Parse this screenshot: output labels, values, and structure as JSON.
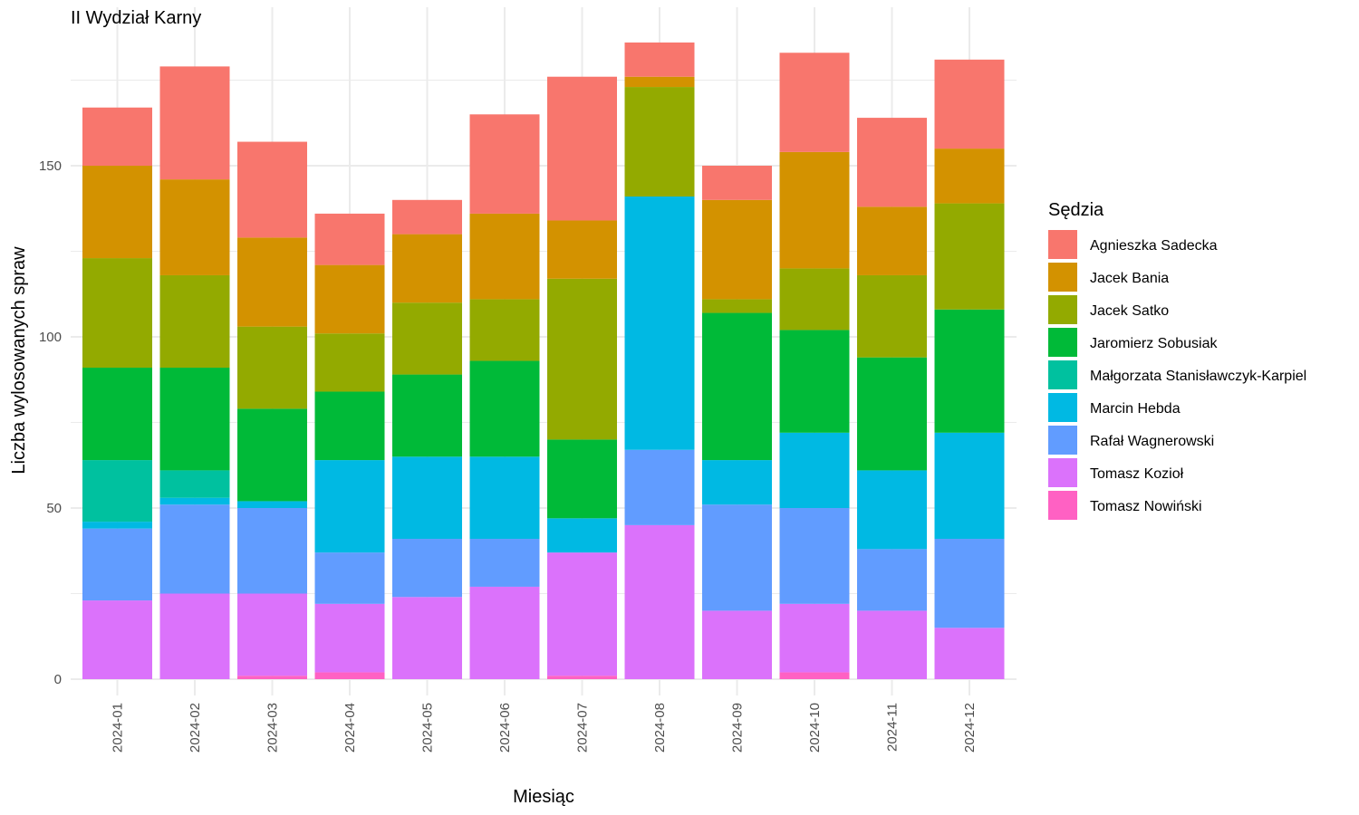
{
  "chart_data": {
    "type": "bar",
    "stacked": true,
    "title": "II Wydział Karny",
    "xlabel": "Miesiąc",
    "ylabel": "Liczba wylosowanych spraw",
    "ylim": [
      0,
      190
    ],
    "yticks": [
      0,
      50,
      100,
      150
    ],
    "grid": true,
    "legend_title": "Sędzia",
    "legend_position": "right",
    "categories": [
      "2024-01",
      "2024-02",
      "2024-03",
      "2024-04",
      "2024-05",
      "2024-06",
      "2024-07",
      "2024-08",
      "2024-09",
      "2024-10",
      "2024-11",
      "2024-12"
    ],
    "series": [
      {
        "name": "Agnieszka Sadecka",
        "color": "#F8766D",
        "values": [
          17,
          33,
          28,
          15,
          10,
          29,
          42,
          10,
          10,
          29,
          26,
          26
        ]
      },
      {
        "name": "Jacek Bania",
        "color": "#D39200",
        "values": [
          27,
          28,
          26,
          20,
          20,
          25,
          17,
          3,
          29,
          34,
          20,
          16
        ]
      },
      {
        "name": "Jacek Satko",
        "color": "#93AA00",
        "values": [
          32,
          27,
          24,
          17,
          21,
          18,
          47,
          32,
          4,
          18,
          24,
          31
        ]
      },
      {
        "name": "Jaromierz Sobusiak",
        "color": "#00BA38",
        "values": [
          27,
          30,
          27,
          20,
          24,
          28,
          23,
          0,
          43,
          30,
          33,
          36
        ]
      },
      {
        "name": "Małgorzata Stanisławczyk-Karpiel",
        "color": "#00C19F",
        "values": [
          18,
          8,
          0,
          0,
          0,
          0,
          0,
          0,
          0,
          0,
          0,
          0
        ]
      },
      {
        "name": "Marcin Hebda",
        "color": "#00B9E3",
        "values": [
          2,
          2,
          2,
          27,
          24,
          24,
          10,
          74,
          13,
          22,
          23,
          31
        ]
      },
      {
        "name": "Rafał Wagnerowski",
        "color": "#619CFF",
        "values": [
          21,
          26,
          25,
          15,
          17,
          14,
          0,
          22,
          31,
          28,
          18,
          26
        ]
      },
      {
        "name": "Tomasz Kozioł",
        "color": "#DB72FB",
        "values": [
          23,
          25,
          24,
          20,
          24,
          27,
          36,
          45,
          20,
          20,
          20,
          15
        ]
      },
      {
        "name": "Tomasz Nowiński",
        "color": "#FF61C3",
        "values": [
          0,
          0,
          1,
          2,
          0,
          0,
          1,
          0,
          0,
          2,
          0,
          0
        ]
      }
    ]
  }
}
